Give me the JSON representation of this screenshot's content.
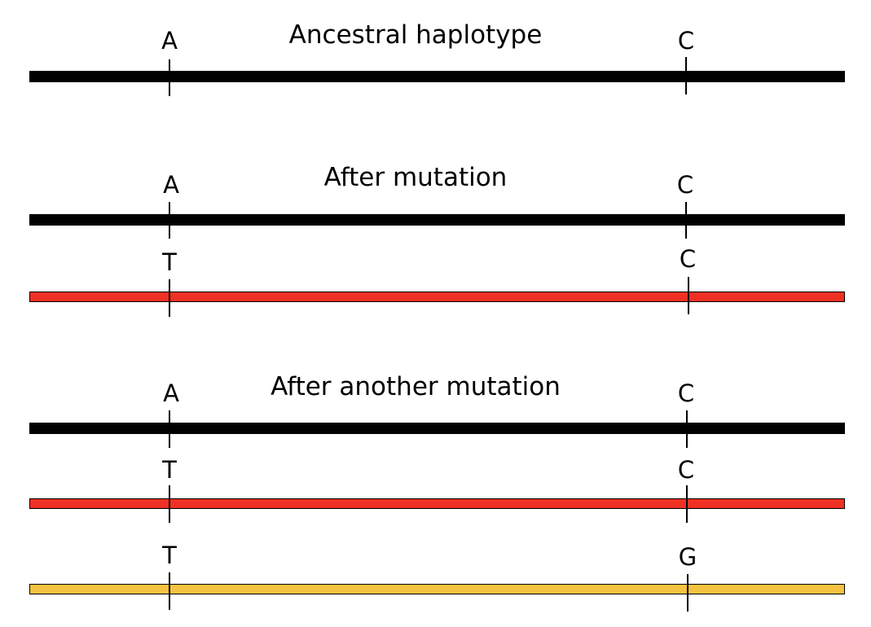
{
  "colors": {
    "ancestral": "#000000",
    "mutation_1": "#ee3124",
    "mutation_2": "#f5c242"
  },
  "panels": [
    {
      "title": "Ancestral haplotype",
      "haplotypes": [
        {
          "color_key": "ancestral",
          "alleles": [
            "A",
            "C"
          ]
        }
      ]
    },
    {
      "title": "After mutation",
      "haplotypes": [
        {
          "color_key": "ancestral",
          "alleles": [
            "A",
            "C"
          ]
        },
        {
          "color_key": "mutation_1",
          "alleles": [
            "T",
            "C"
          ]
        }
      ]
    },
    {
      "title": "After another mutation",
      "haplotypes": [
        {
          "color_key": "ancestral",
          "alleles": [
            "A",
            "C"
          ]
        },
        {
          "color_key": "mutation_1",
          "alleles": [
            "T",
            "C"
          ]
        },
        {
          "color_key": "mutation_2",
          "alleles": [
            "T",
            "G"
          ]
        }
      ]
    }
  ]
}
